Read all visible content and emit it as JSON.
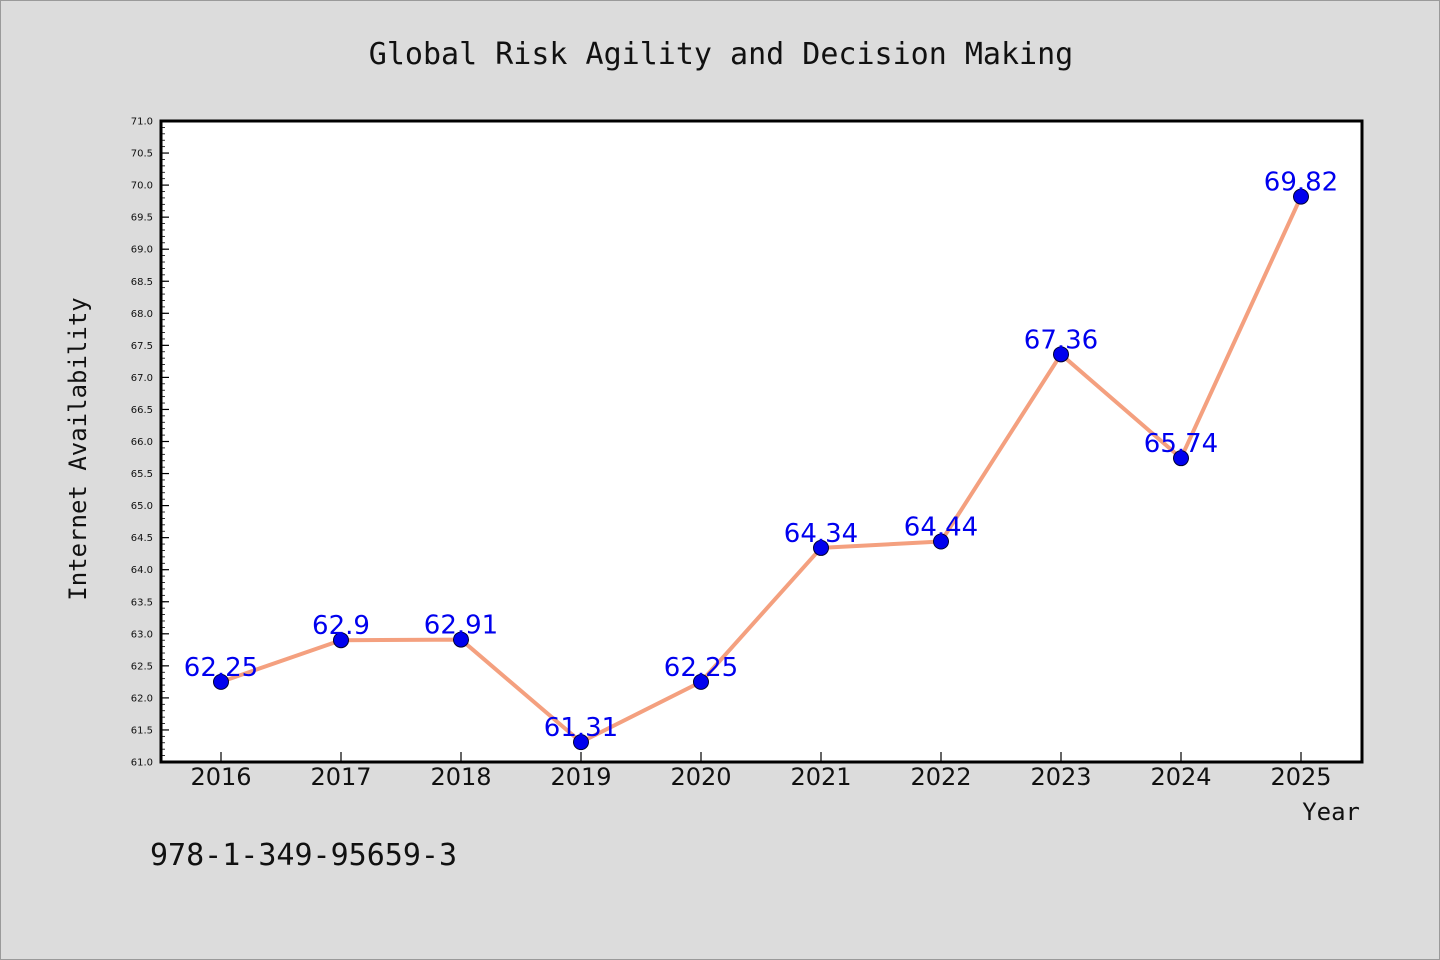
{
  "chart_data": {
    "type": "line",
    "title": "Global Risk Agility and Decision Making",
    "xlabel": "Year",
    "ylabel": "Internet Availability",
    "categories": [
      "2016",
      "2017",
      "2018",
      "2019",
      "2020",
      "2021",
      "2022",
      "2023",
      "2024",
      "2025"
    ],
    "series": [
      {
        "values": [
          62.25,
          62.9,
          62.91,
          61.31,
          62.25,
          64.34,
          64.44,
          67.36,
          65.74,
          69.82
        ],
        "data_labels": [
          "62.25",
          "62.9",
          "62.91",
          "61.31",
          "62.25",
          "64.34",
          "64.44",
          "67.36",
          "65.74",
          "69.82"
        ],
        "line_color": "#f4a07f",
        "marker_color": "#0000ee",
        "label_color": "#0000ee"
      }
    ],
    "ylim": [
      61.0,
      71.0
    ],
    "yticks": [
      "61.0",
      "61.5",
      "62.0",
      "62.5",
      "63.0",
      "63.5",
      "64.0",
      "64.5",
      "65.0",
      "65.5",
      "66.0",
      "66.5",
      "67.0",
      "67.5",
      "68.0",
      "68.5",
      "69.0",
      "69.5",
      "70.0",
      "70.5",
      "71.0"
    ],
    "grid": false,
    "legend": "none"
  },
  "footer": {
    "isbn": "978-1-349-95659-3"
  },
  "colors": {
    "background": "#dcdcdc",
    "plot_background": "#ffffff",
    "axis": "#000000"
  }
}
